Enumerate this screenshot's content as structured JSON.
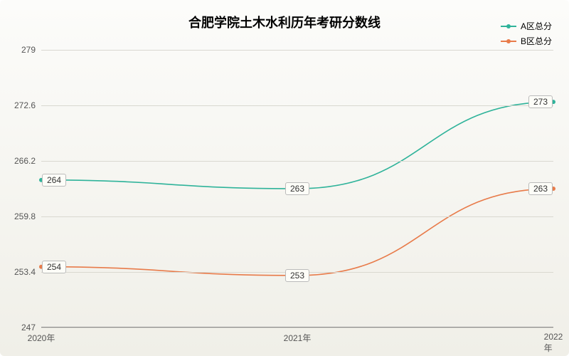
{
  "chart": {
    "type": "line",
    "title": "合肥学院土木水利历年考研分数线",
    "title_fontsize": 18,
    "background_gradient": [
      "#fcfcfa",
      "#f0efe8"
    ],
    "grid_color": "#d9d8d0",
    "axis_color": "#888888",
    "label_fontsize": 12,
    "x_categories": [
      "2020年",
      "2021年",
      "2022年"
    ],
    "ylim": [
      247,
      279
    ],
    "y_ticks": [
      247,
      253.4,
      259.8,
      266.2,
      272.6,
      279
    ],
    "y_tick_labels": [
      "247",
      "253.4",
      "259.8",
      "266.2",
      "272.6",
      "279"
    ],
    "series": [
      {
        "name": "A区总分",
        "color": "#2fb39a",
        "values": [
          264,
          263,
          273
        ],
        "labels": [
          "264",
          "263",
          "273"
        ],
        "line_width": 1.6
      },
      {
        "name": "B区总分",
        "color": "#e87b4a",
        "values": [
          254,
          253,
          263
        ],
        "labels": [
          "254",
          "253",
          "263"
        ],
        "line_width": 1.6
      }
    ]
  }
}
